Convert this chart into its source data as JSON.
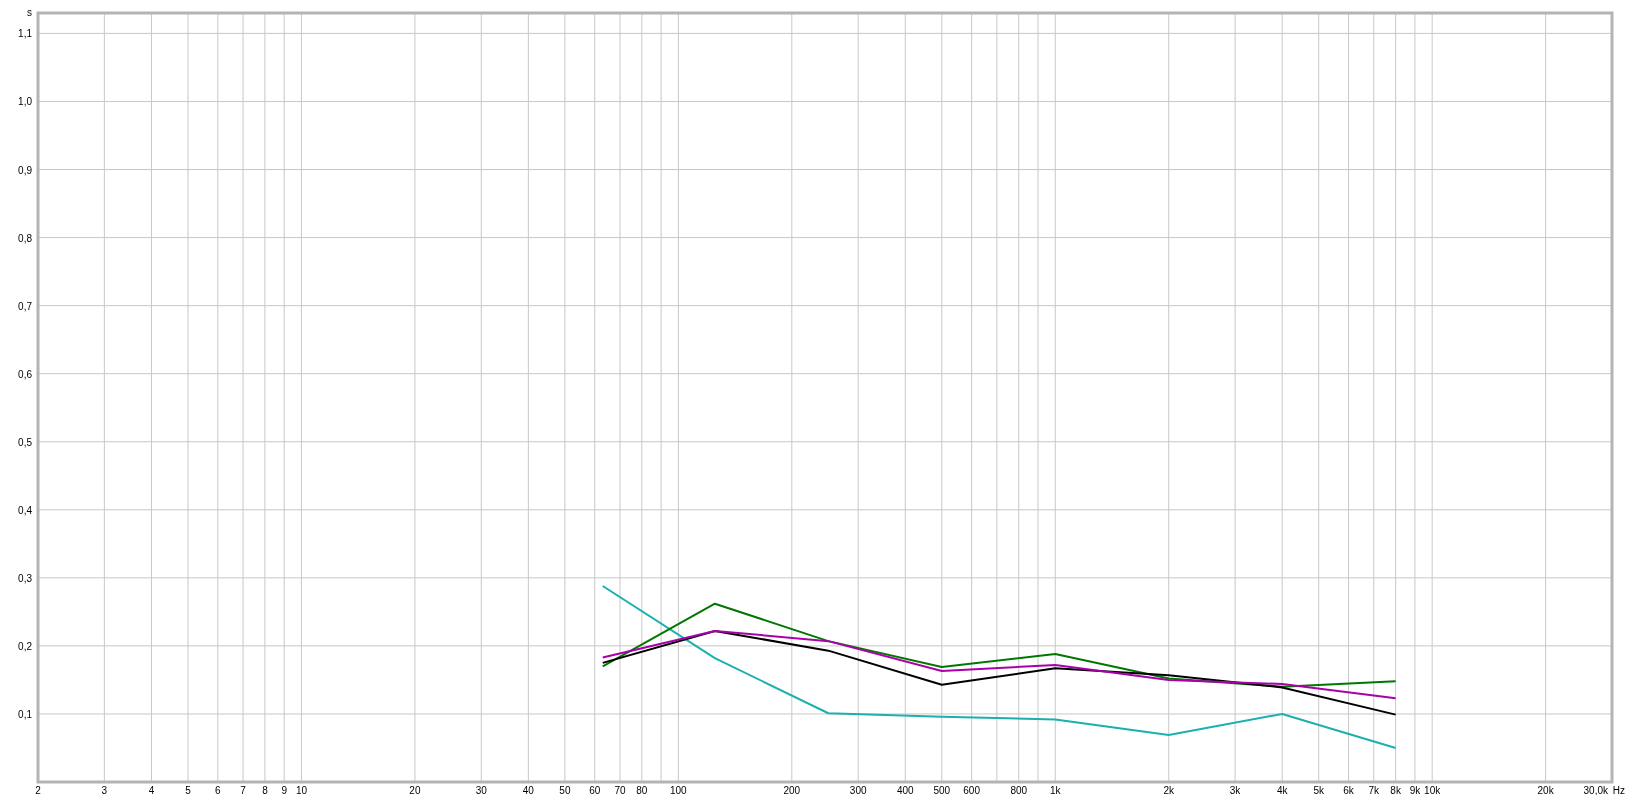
{
  "chart_data": {
    "type": "line",
    "xlabel": "Hz",
    "ylabel": "s",
    "log": "x",
    "grid": true,
    "marker": "none",
    "line_style": "solid",
    "x": [
      63,
      125,
      250,
      500,
      1000,
      2000,
      4000,
      8000
    ],
    "xlim": [
      2,
      30000
    ],
    "xticks": [
      2,
      3,
      4,
      5,
      6,
      7,
      8,
      9,
      10,
      20,
      30,
      40,
      50,
      60,
      70,
      80,
      {
        "value": 90,
        "label": null
      },
      100,
      200,
      300,
      400,
      500,
      600,
      {
        "value": 700,
        "label": null
      },
      800,
      {
        "value": 900,
        "label": null
      },
      {
        "value": 1000,
        "label": "1k"
      },
      {
        "value": 2000,
        "label": "2k"
      },
      {
        "value": 3000,
        "label": "3k"
      },
      {
        "value": 4000,
        "label": "4k"
      },
      {
        "value": 5000,
        "label": "5k"
      },
      {
        "value": 6000,
        "label": "6k"
      },
      {
        "value": 7000,
        "label": "7k"
      },
      {
        "value": 8000,
        "label": "8k"
      },
      {
        "value": 9000,
        "label": "9k"
      },
      {
        "value": 10000,
        "label": "10k"
      },
      {
        "value": 20000,
        "label": "20k"
      },
      {
        "value": 30000,
        "label": "30,0k"
      }
    ],
    "ylim": [
      0,
      1.13
    ],
    "yticks": [
      {
        "value": 0.1,
        "label": "0,1"
      },
      {
        "value": 0.2,
        "label": "0,2"
      },
      {
        "value": 0.3,
        "label": "0,3"
      },
      {
        "value": 0.4,
        "label": "0,4"
      },
      {
        "value": 0.5,
        "label": "0,5"
      },
      {
        "value": 0.6,
        "label": "0,6"
      },
      {
        "value": 0.7,
        "label": "0,7"
      },
      {
        "value": 0.8,
        "label": "0,8"
      },
      {
        "value": 0.9,
        "label": "0,9"
      },
      {
        "value": 1.0,
        "label": "1,0"
      },
      {
        "value": 1.1,
        "label": "1,1"
      }
    ],
    "series": [
      {
        "color": "#1ab0b0",
        "values": [
          0.288,
          0.182,
          0.101,
          0.096,
          0.092,
          0.069,
          0.1,
          0.05
        ]
      },
      {
        "color": "#007700",
        "values": [
          0.17,
          0.262,
          0.207,
          0.169,
          0.188,
          0.152,
          0.14,
          0.148
        ]
      },
      {
        "color": "#000000",
        "values": [
          0.175,
          0.222,
          0.193,
          0.143,
          0.167,
          0.157,
          0.139,
          0.099
        ]
      },
      {
        "color": "#aa00aa",
        "values": [
          0.183,
          0.222,
          0.207,
          0.163,
          0.172,
          0.15,
          0.144,
          0.123
        ]
      }
    ]
  }
}
